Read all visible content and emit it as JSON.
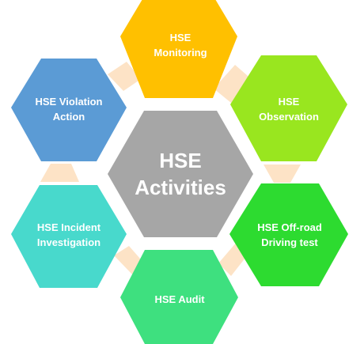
{
  "center": {
    "line1": "HSE",
    "line2": "Activities",
    "color": "#a6a6a6"
  },
  "connector_color": "#fde3c6",
  "nodes": [
    {
      "id": "monitoring",
      "line1": "HSE",
      "line2": "Monitoring",
      "color": "#ffc000"
    },
    {
      "id": "observation",
      "line1": "HSE",
      "line2": "Observation",
      "color": "#99e61f"
    },
    {
      "id": "offroad",
      "line1": "HSE Off-road",
      "line2": "Driving test",
      "color": "#2ddb30"
    },
    {
      "id": "audit",
      "line1": "HSE Audit",
      "line2": "",
      "color": "#3ee07f"
    },
    {
      "id": "incident",
      "line1": "HSE Incident",
      "line2": "Investigation",
      "color": "#48d9cc"
    },
    {
      "id": "violation",
      "line1": "HSE Violation",
      "line2": "Action",
      "color": "#5b9bd5"
    }
  ]
}
